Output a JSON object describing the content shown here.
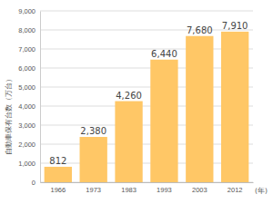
{
  "chart_data": {
    "type": "bar",
    "categories": [
      "1966",
      "1973",
      "1983",
      "1993",
      "2003",
      "2012"
    ],
    "values": [
      812,
      2380,
      4260,
      6440,
      7680,
      7910
    ],
    "value_labels": [
      "812",
      "2,380",
      "4,260",
      "6,440",
      "7,680",
      "7,910"
    ],
    "color": "#ffc766",
    "xlabel": "(年)",
    "ylabel": "自動車保有台数（万台）",
    "ylim": [
      0,
      9000
    ],
    "yticks": [
      0,
      {
        "value": 1000,
        "label": "1,000"
      },
      {
        "value": 2000,
        "label": "2,000"
      },
      {
        "value": 3000,
        "label": "3,000"
      },
      {
        "value": 4000,
        "label": "4,000"
      },
      {
        "value": 5000,
        "label": "5,000"
      },
      {
        "value": 6000,
        "label": "6,000"
      },
      {
        "value": 7000,
        "label": "7,000"
      },
      {
        "value": 8000,
        "label": "8,000"
      },
      {
        "value": 9000,
        "label": "9,000"
      }
    ],
    "grid": true,
    "data_labels": true
  }
}
